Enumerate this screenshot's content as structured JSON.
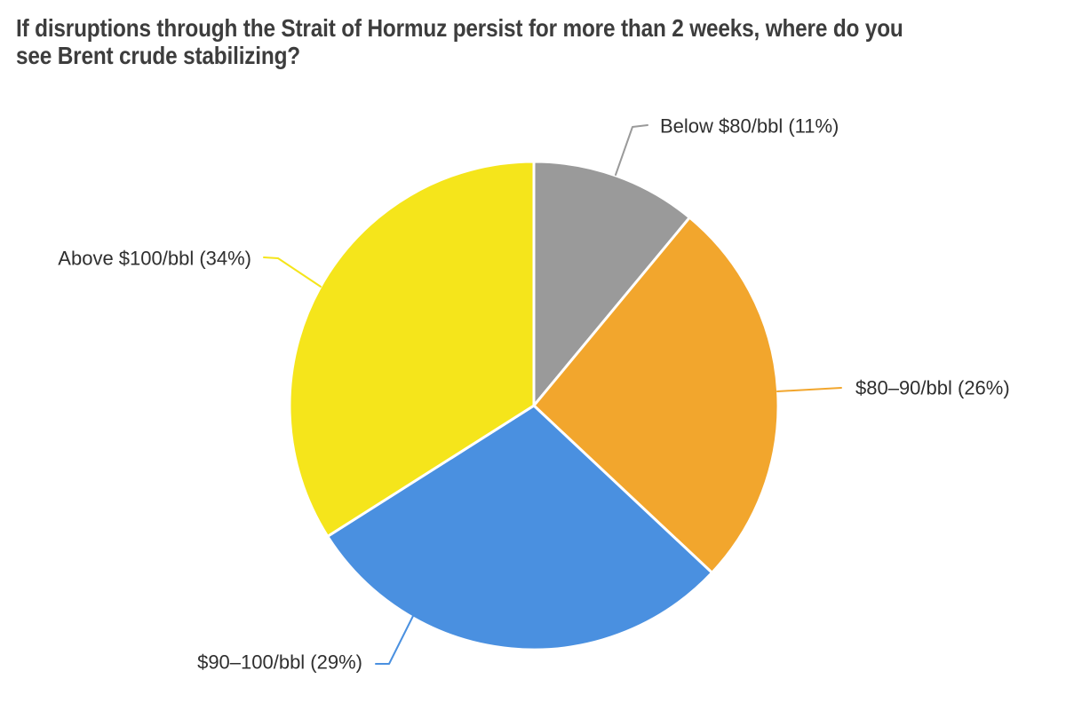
{
  "page": {
    "background_color": "#ffffff"
  },
  "title": {
    "lines": [
      "If disruptions through the Strait of Hormuz persist for more than 2 weeks, where do you",
      "see Brent crude stabilizing?"
    ],
    "full_text": "If disruptions through the Strait of Hormuz persist for more than 2 weeks, where do you see Brent crude stabilizing?",
    "color": "#3d3d3d"
  },
  "chart_data": {
    "type": "pie",
    "title": "If disruptions through the Strait of Hormuz persist for more than 2 weeks, where do you see Brent crude stabilizing?",
    "direction": "clockwise",
    "start_angle": "12-o-clock",
    "total": 100,
    "donut": false,
    "slice_border_color": "#ffffff",
    "label_text_color": "#2f2f2f",
    "legend_position": "outside-callout-labels",
    "slices": [
      {
        "label": "Below $80/bbl",
        "value": 11,
        "display": "Below $80/bbl (11%)",
        "color": "#9a9a9a"
      },
      {
        "label": "$80–90/bbl",
        "value": 26,
        "display": "$80–90/bbl (26%)",
        "color": "#f2a62d"
      },
      {
        "label": "$90–100/bbl",
        "value": 29,
        "display": "$90–100/bbl (29%)",
        "color": "#4a90e0"
      },
      {
        "label": "Above $100/bbl",
        "value": 34,
        "display": "Above $100/bbl (34%)",
        "color": "#f5e51b"
      }
    ]
  }
}
